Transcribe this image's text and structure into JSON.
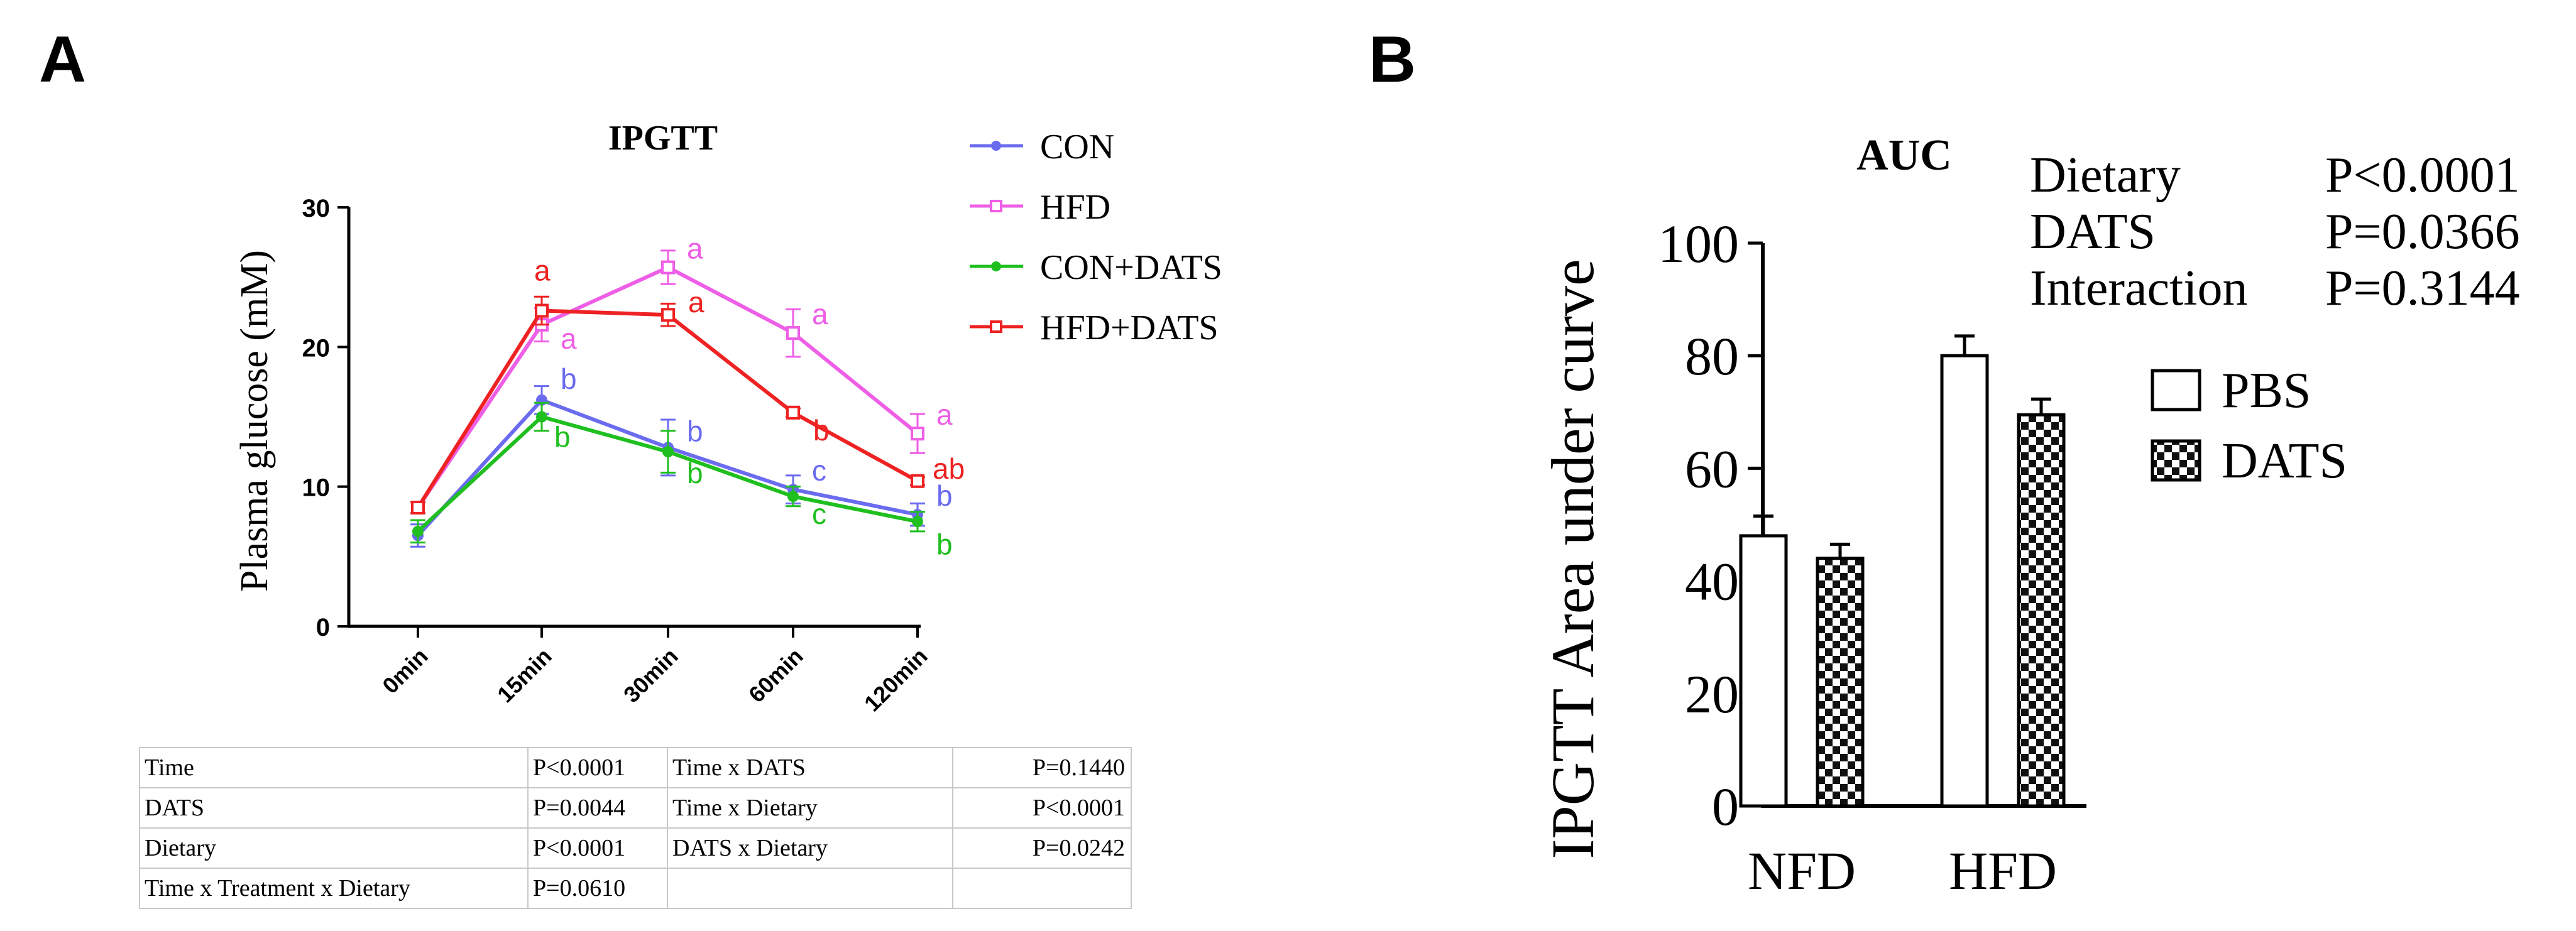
{
  "panels": {
    "a": "A",
    "b": "B"
  },
  "chart_data": [
    {
      "type": "line",
      "title": "IPGTT",
      "xlabel": "",
      "ylabel": "Plasma glucose (mM)",
      "categories": [
        "0min",
        "15min",
        "30min",
        "60min",
        "120min"
      ],
      "ylim": [
        0,
        30
      ],
      "yticks": [
        0,
        10,
        20,
        30
      ],
      "legend_position": "top-right",
      "series": [
        {
          "name": "CON",
          "color": "#6b6bf0",
          "marker": "circle",
          "values": [
            6.5,
            16.2,
            12.8,
            9.8,
            8.0
          ],
          "errors": [
            0.8,
            1.0,
            2.0,
            1.0,
            0.8
          ],
          "letters": [
            "",
            "b",
            "b",
            "c",
            "b"
          ]
        },
        {
          "name": "HFD",
          "color": "#ee5ee6",
          "marker": "square",
          "values": [
            8.5,
            21.6,
            25.7,
            21.0,
            13.8
          ],
          "errors": [
            0.4,
            1.2,
            1.2,
            1.7,
            1.4
          ],
          "letters": [
            "",
            "a",
            "a",
            "a",
            "a"
          ]
        },
        {
          "name": "CON+DATS",
          "color": "#1fbf1f",
          "marker": "circle",
          "values": [
            6.8,
            15.0,
            12.5,
            9.3,
            7.5
          ],
          "errors": [
            0.8,
            1.0,
            1.5,
            0.7,
            0.7
          ],
          "letters": [
            "",
            "b",
            "b",
            "c",
            "b"
          ]
        },
        {
          "name": "HFD+DATS",
          "color": "#ee2222",
          "marker": "square",
          "values": [
            8.5,
            22.6,
            22.3,
            15.3,
            10.4
          ],
          "errors": [
            0.4,
            1.0,
            0.8,
            0.3,
            0.3
          ],
          "letters": [
            "",
            "a",
            "a",
            "b",
            "ab"
          ]
        }
      ],
      "stats_table": [
        [
          "Time",
          "P<0.0001",
          "Time x DATS",
          "P=0.1440"
        ],
        [
          "DATS",
          "P=0.0044",
          "Time x Dietary",
          "P<0.0001"
        ],
        [
          "Dietary",
          "P<0.0001",
          "DATS x Dietary",
          "P=0.0242"
        ],
        [
          "Time x Treatment x Dietary",
          "P=0.0610",
          "",
          ""
        ]
      ]
    },
    {
      "type": "bar",
      "title": "AUC",
      "xlabel": "",
      "ylabel": "IPGTT Area under curve",
      "categories": [
        "NFD",
        "HFD"
      ],
      "ylim": [
        0,
        100
      ],
      "yticks": [
        0,
        20,
        40,
        60,
        80,
        100
      ],
      "legend_position": "right",
      "series": [
        {
          "name": "PBS",
          "pattern": "plain",
          "values": [
            48.0,
            80.0
          ],
          "errors": [
            3.5,
            3.5
          ]
        },
        {
          "name": "DATS",
          "pattern": "checker",
          "values": [
            44.0,
            69.5
          ],
          "errors": [
            2.5,
            2.8
          ]
        }
      ],
      "stats": [
        {
          "label": "Dietary",
          "value": "P<0.0001"
        },
        {
          "label": "DATS",
          "value": "P=0.0366"
        },
        {
          "label": "Interaction",
          "value": "P=0.3144"
        }
      ]
    }
  ]
}
